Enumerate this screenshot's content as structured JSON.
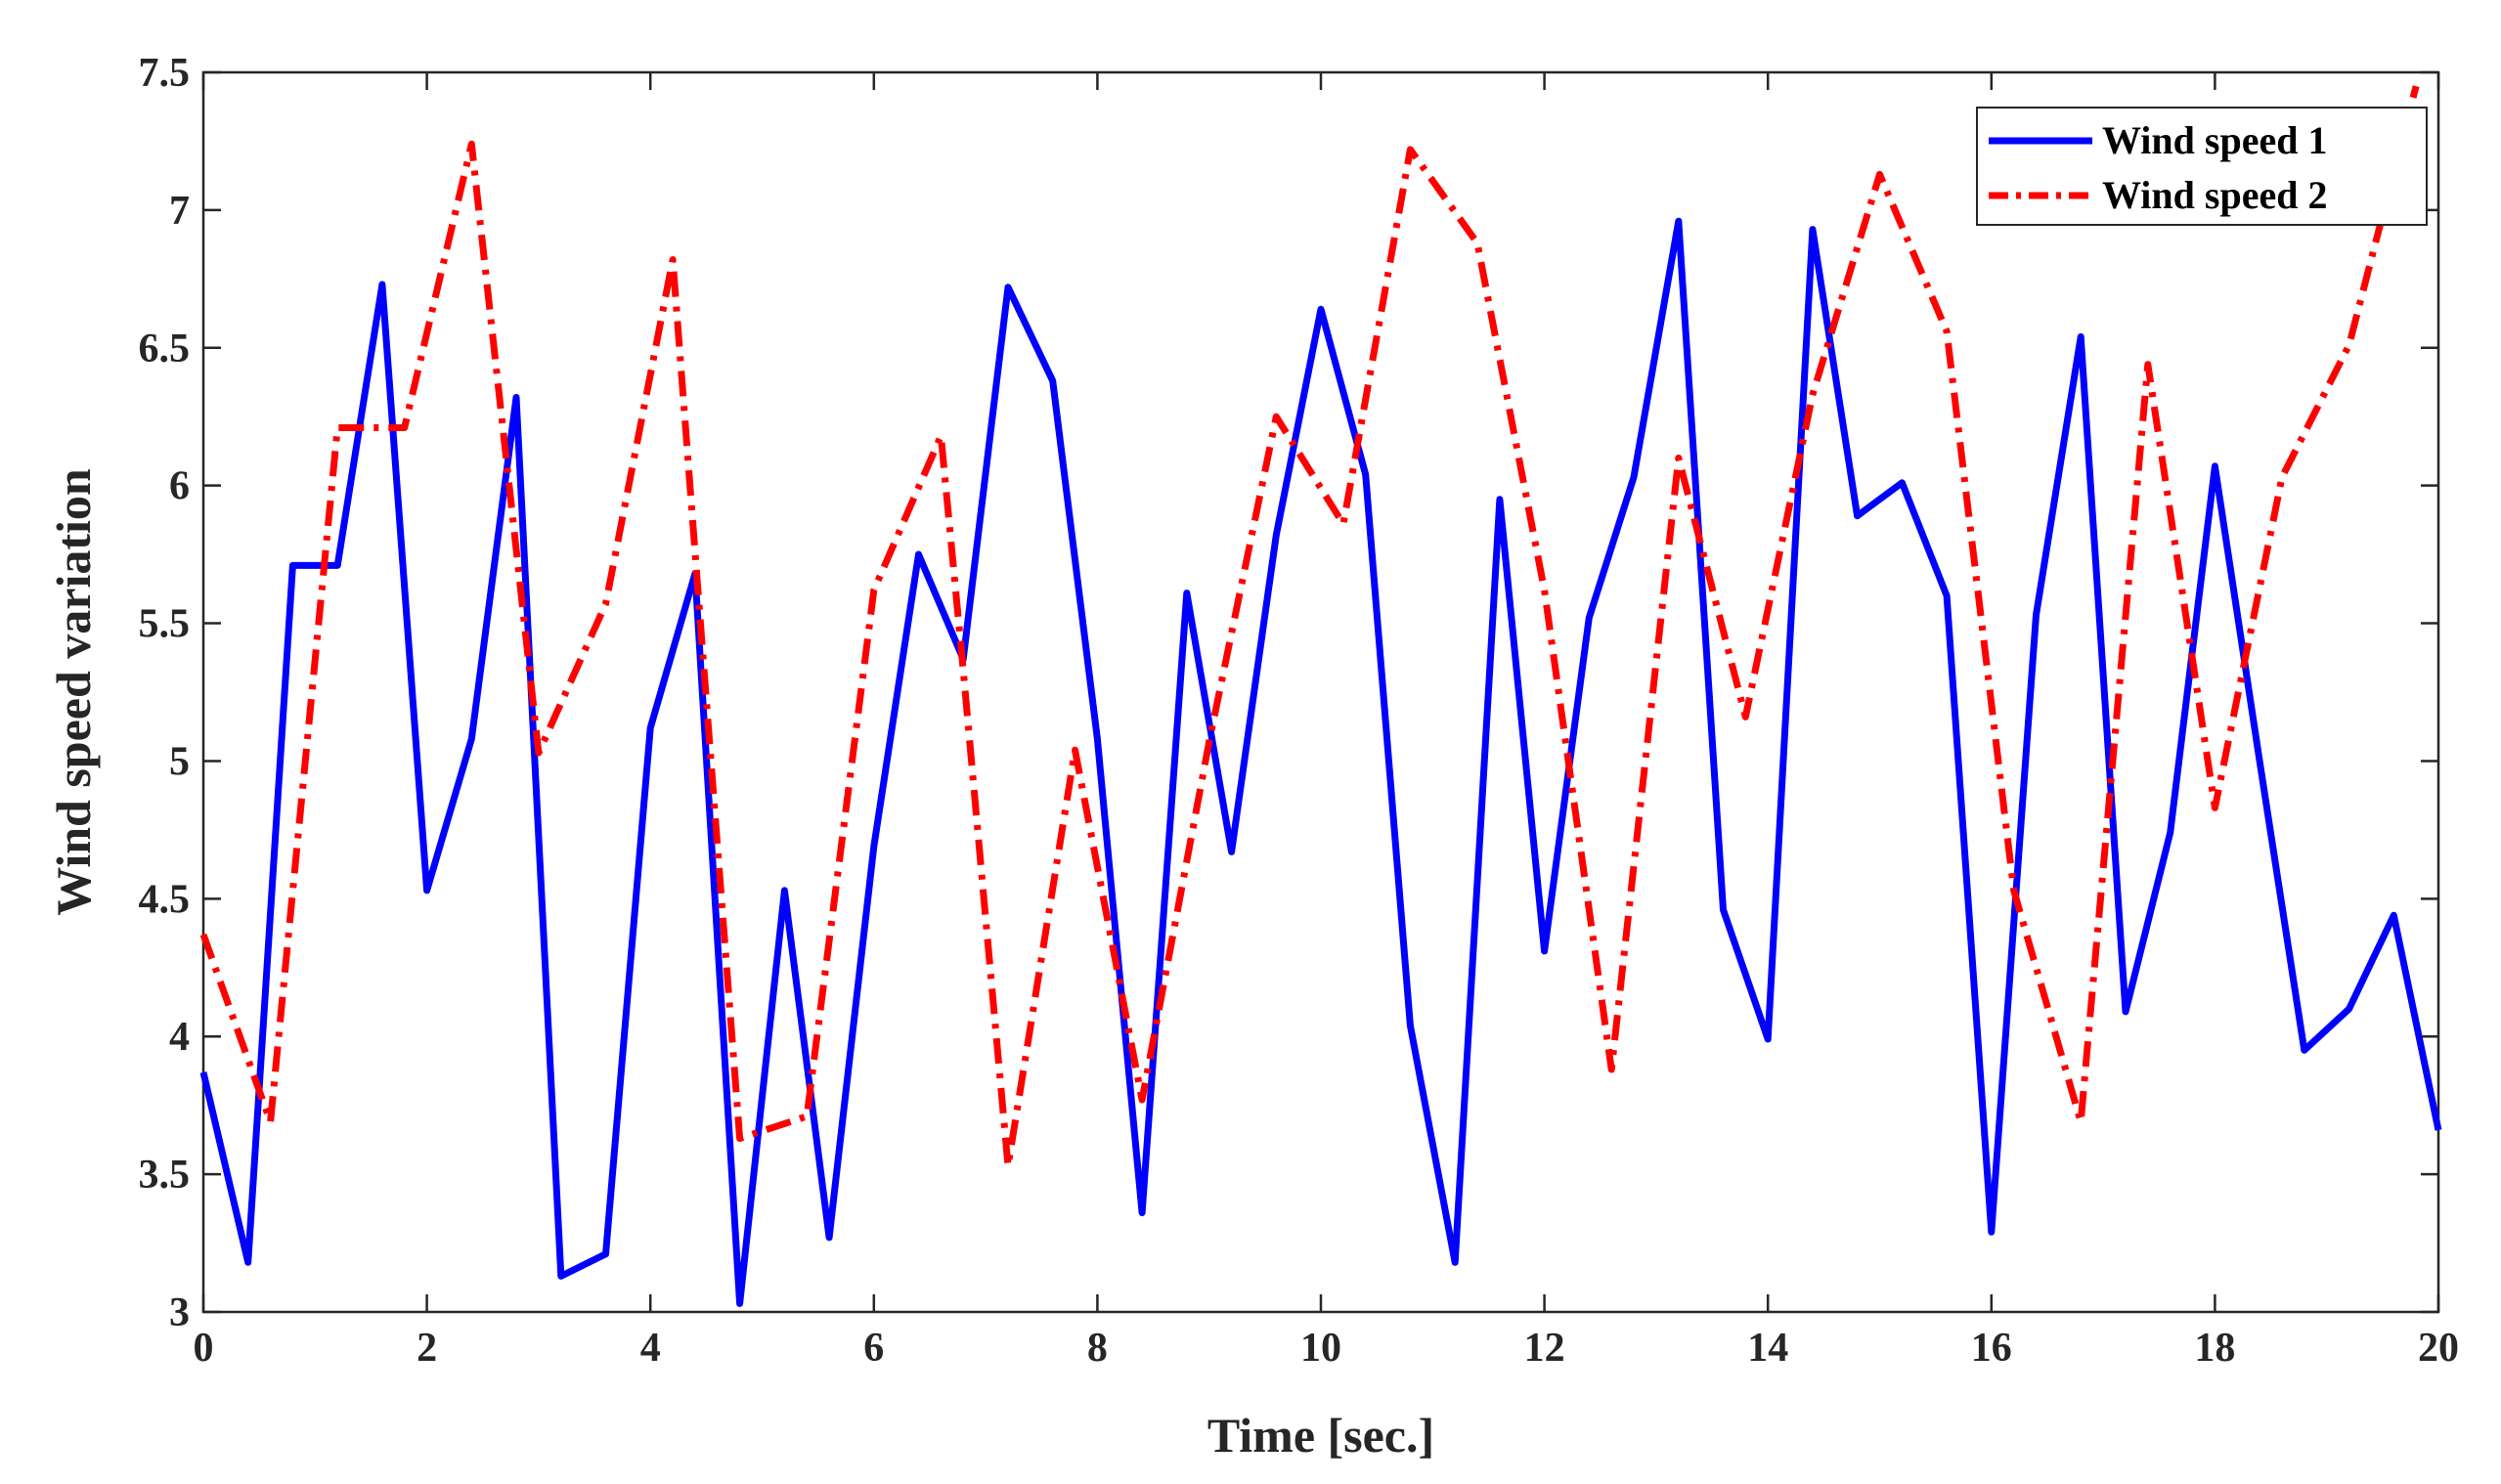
{
  "chart_data": {
    "type": "line",
    "title": "",
    "xlabel": "Time [sec.]",
    "ylabel": "Wind speed variation",
    "xlim": [
      0,
      20
    ],
    "ylim": [
      3,
      7.5
    ],
    "xticks": [
      0,
      2,
      4,
      6,
      8,
      10,
      12,
      14,
      16,
      18,
      20
    ],
    "xtick_labels": [
      "0",
      "2",
      "4",
      "6",
      "8",
      "10",
      "12",
      "14",
      "16",
      "18",
      "20"
    ],
    "yticks": [
      3,
      3.5,
      4,
      4.5,
      5,
      5.5,
      6,
      6.5,
      7,
      7.5
    ],
    "ytick_labels": [
      "3",
      "3.5",
      "4",
      "4.5",
      "5",
      "5.5",
      "6",
      "6.5",
      "7",
      "7.5"
    ],
    "grid": false,
    "legend_position": "top-right",
    "series": [
      {
        "name": "Wind speed 1",
        "color": "#0000ff",
        "style": "solid",
        "x": [
          0,
          0.4,
          0.8,
          1.2,
          1.6,
          2.0,
          2.4,
          2.8,
          3.2,
          3.6,
          4.0,
          4.4,
          4.8,
          5.2,
          5.6,
          6.0,
          6.4,
          6.8,
          7.2,
          7.6,
          8.0,
          8.4,
          8.8,
          9.2,
          9.6,
          10.0,
          10.4,
          10.8,
          11.2,
          11.6,
          12.0,
          12.4,
          12.8,
          13.2,
          13.6,
          14.0,
          14.4,
          14.8,
          15.2,
          15.6,
          16.0,
          16.4,
          16.8,
          17.2,
          17.6,
          18.0,
          18.4,
          18.8,
          19.2,
          19.6,
          20.0
        ],
        "values": [
          3.87,
          3.18,
          5.71,
          5.71,
          6.73,
          4.53,
          5.08,
          6.32,
          3.13,
          3.21,
          5.12,
          5.68,
          3.03,
          4.53,
          3.27,
          4.69,
          5.75,
          5.37,
          6.72,
          6.38,
          5.08,
          3.36,
          5.61,
          4.67,
          5.82,
          6.64,
          6.04,
          4.04,
          3.18,
          5.95,
          4.31,
          5.52,
          6.03,
          6.96,
          4.46,
          3.99,
          6.93,
          5.89,
          6.01,
          5.6,
          3.29,
          5.53,
          6.54,
          4.09,
          4.74,
          6.07,
          5.0,
          3.95,
          4.1,
          4.44,
          3.66
        ]
      },
      {
        "name": "Wind speed 2",
        "color": "#ff0000",
        "style": "dashdot",
        "x": [
          0,
          0.6,
          1.2,
          1.8,
          2.4,
          3.0,
          3.6,
          4.2,
          4.8,
          5.4,
          6.0,
          6.6,
          6.8,
          7.2,
          7.8,
          8.4,
          9.0,
          9.6,
          10.2,
          10.8,
          11.4,
          12.0,
          12.6,
          13.2,
          13.8,
          14.4,
          15.0,
          15.6,
          16.2,
          16.8,
          17.4,
          18.0,
          18.6,
          19.2,
          19.8
        ],
        "values": [
          4.37,
          3.69,
          6.21,
          6.21,
          7.24,
          5.03,
          5.57,
          6.82,
          3.63,
          3.71,
          5.62,
          6.18,
          5.33,
          3.53,
          5.04,
          3.77,
          5.07,
          6.25,
          5.86,
          7.22,
          6.88,
          5.62,
          3.88,
          6.1,
          5.16,
          6.33,
          7.13,
          6.56,
          4.53,
          3.69,
          6.44,
          4.83,
          6.03,
          6.51,
          7.45
        ]
      }
    ]
  }
}
